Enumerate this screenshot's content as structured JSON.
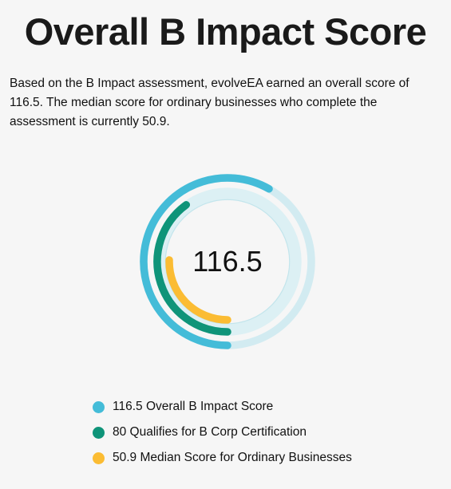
{
  "title": "Overall B Impact Score",
  "description": "Based on the B Impact assessment, evolveEA earned an overall score of 116.5. The median score for ordinary businesses who complete the assessment is currently 50.9.",
  "chart_data": {
    "type": "radial-bar",
    "center_label": "116.5",
    "max": 200,
    "series": [
      {
        "name": "Overall B Impact Score",
        "label": "116.5 Overall B Impact Score",
        "value": 116.5,
        "color": "#44bcd8"
      },
      {
        "name": "Qualifies for B Corp Certification",
        "label": "80 Qualifies for B Corp Certification",
        "value": 80,
        "color": "#0f9479"
      },
      {
        "name": "Median Score for Ordinary Businesses",
        "label": "50.9 Median Score for Ordinary Businesses",
        "value": 50.9,
        "color": "#fbbc33"
      }
    ],
    "track_color": "#d2ebf1"
  }
}
